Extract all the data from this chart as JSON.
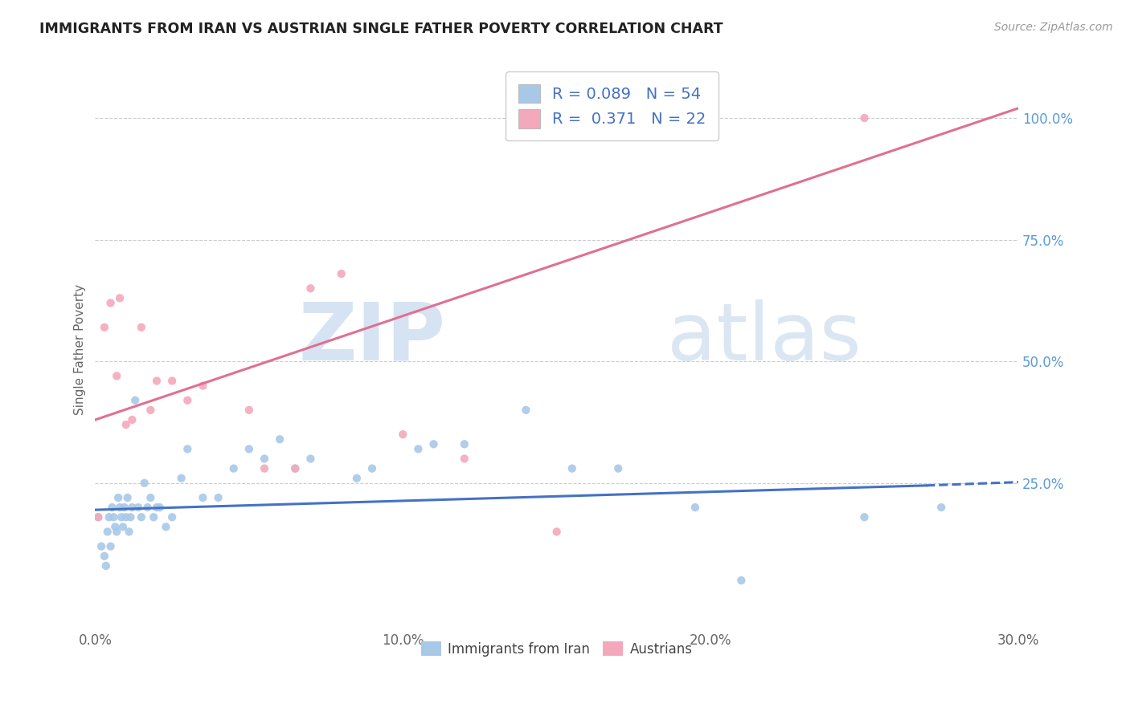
{
  "title": "IMMIGRANTS FROM IRAN VS AUSTRIAN SINGLE FATHER POVERTY CORRELATION CHART",
  "source": "Source: ZipAtlas.com",
  "ylabel": "Single Father Poverty",
  "x_tick_labels": [
    "0.0%",
    "10.0%",
    "20.0%",
    "30.0%"
  ],
  "x_tick_vals": [
    0.0,
    10.0,
    20.0,
    30.0
  ],
  "y_tick_labels": [
    "25.0%",
    "50.0%",
    "75.0%",
    "100.0%"
  ],
  "y_tick_vals": [
    25.0,
    50.0,
    75.0,
    100.0
  ],
  "xlim": [
    0.0,
    30.0
  ],
  "ylim": [
    -5.0,
    110.0
  ],
  "blue_R": 0.089,
  "blue_N": 54,
  "pink_R": 0.371,
  "pink_N": 22,
  "blue_color": "#a8c8e8",
  "pink_color": "#f4a8bc",
  "blue_line_color": "#4472c4",
  "pink_line_color": "#e07090",
  "legend_label_blue": "Immigrants from Iran",
  "legend_label_pink": "Austrians",
  "watermark_zip": "ZIP",
  "watermark_atlas": "atlas",
  "blue_scatter_x": [
    0.1,
    0.2,
    0.3,
    0.35,
    0.4,
    0.45,
    0.5,
    0.55,
    0.6,
    0.65,
    0.7,
    0.75,
    0.8,
    0.85,
    0.9,
    0.95,
    1.0,
    1.05,
    1.1,
    1.15,
    1.2,
    1.3,
    1.4,
    1.5,
    1.6,
    1.7,
    1.8,
    1.9,
    2.0,
    2.1,
    2.3,
    2.5,
    2.8,
    3.0,
    3.5,
    4.0,
    4.5,
    5.0,
    5.5,
    6.0,
    6.5,
    7.0,
    8.5,
    9.0,
    10.5,
    11.0,
    12.0,
    14.0,
    15.5,
    17.0,
    19.5,
    21.0,
    25.0,
    27.5
  ],
  "blue_scatter_y": [
    18,
    12,
    10,
    8,
    15,
    18,
    12,
    20,
    18,
    16,
    15,
    22,
    20,
    18,
    16,
    20,
    18,
    22,
    15,
    18,
    20,
    42,
    20,
    18,
    25,
    20,
    22,
    18,
    20,
    20,
    16,
    18,
    26,
    32,
    22,
    22,
    28,
    32,
    30,
    34,
    28,
    30,
    26,
    28,
    32,
    33,
    33,
    40,
    28,
    28,
    20,
    5,
    18,
    20
  ],
  "pink_scatter_x": [
    0.1,
    0.3,
    0.5,
    0.7,
    0.8,
    1.0,
    1.2,
    1.5,
    1.8,
    2.0,
    2.5,
    3.0,
    3.5,
    5.0,
    5.5,
    6.5,
    7.0,
    8.0,
    10.0,
    12.0,
    15.0,
    25.0
  ],
  "pink_scatter_y": [
    18,
    57,
    62,
    47,
    63,
    37,
    38,
    57,
    40,
    46,
    46,
    42,
    45,
    40,
    28,
    28,
    65,
    68,
    35,
    30,
    15,
    100
  ],
  "pink_line_x0": 0.0,
  "pink_line_y0": 38.0,
  "pink_line_x1": 30.0,
  "pink_line_y1": 102.0,
  "blue_line_x0": 0.0,
  "blue_line_y0": 19.5,
  "blue_line_x1": 27.0,
  "blue_line_y1": 24.5,
  "blue_dash_x0": 27.0,
  "blue_dash_x1": 30.0,
  "blue_dash_y0": 24.5,
  "blue_dash_y1": 25.2
}
